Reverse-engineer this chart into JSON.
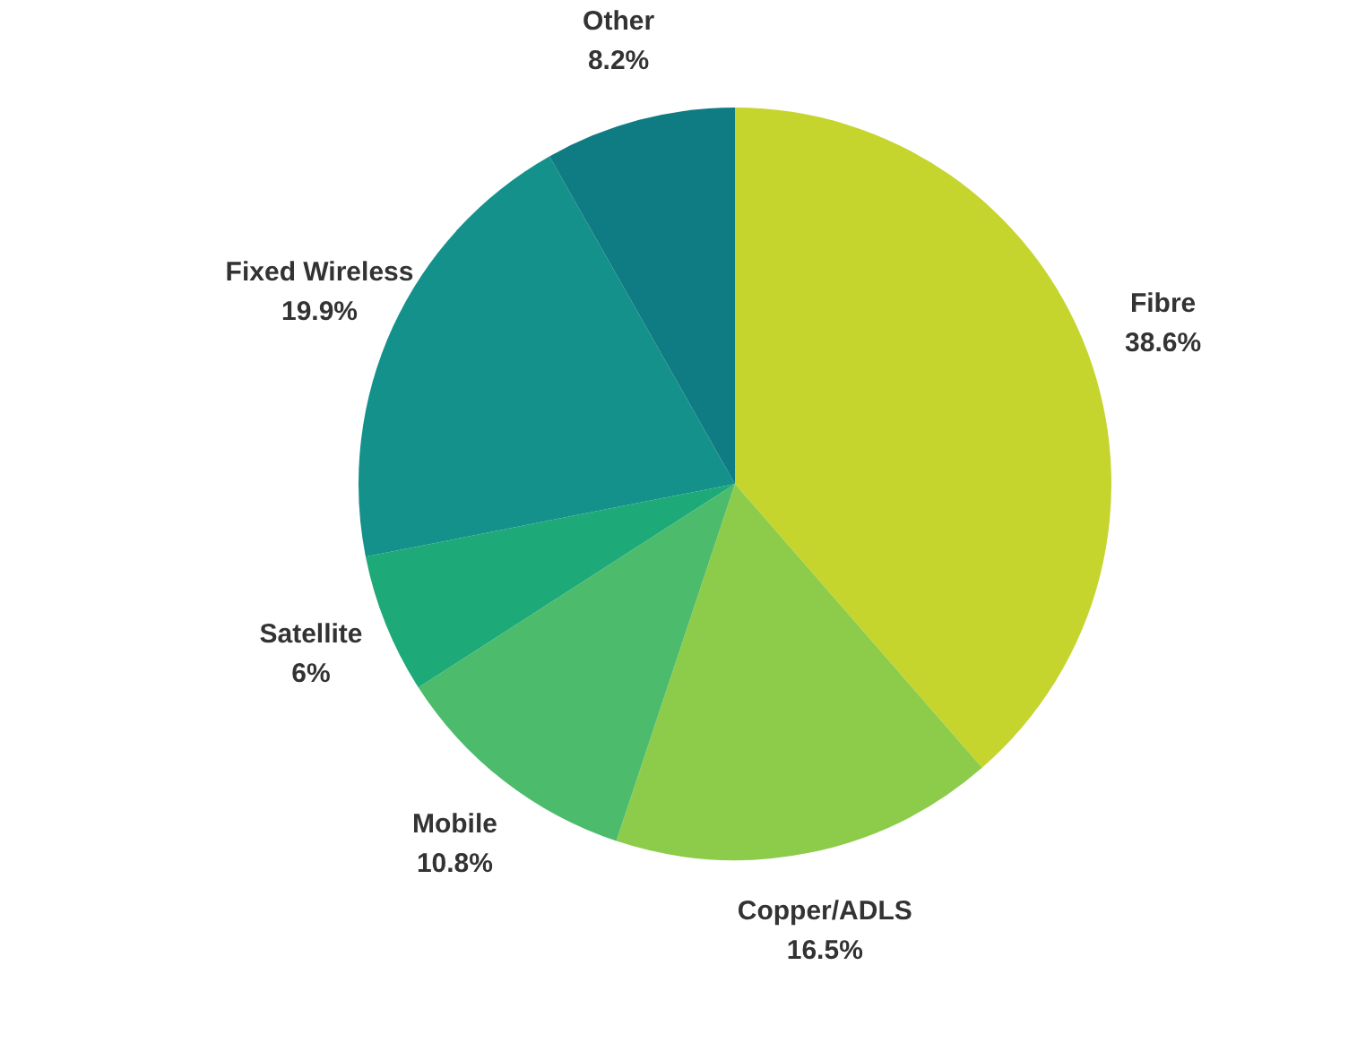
{
  "chart_data": {
    "type": "pie",
    "categories": [
      "Fibre",
      "Copper/ADLS",
      "Mobile",
      "Satellite",
      "Fixed Wireless",
      "Other"
    ],
    "values": [
      38.6,
      16.5,
      10.8,
      6,
      19.9,
      8.2
    ],
    "colors": [
      "#c5d52e",
      "#8dcc4a",
      "#4cbc6c",
      "#1eaa78",
      "#13918a",
      "#0f7b82"
    ],
    "value_labels": [
      "38.6%",
      "16.5%",
      "10.8%",
      "6%",
      "19.9%",
      "8.2%"
    ],
    "legend": false
  }
}
